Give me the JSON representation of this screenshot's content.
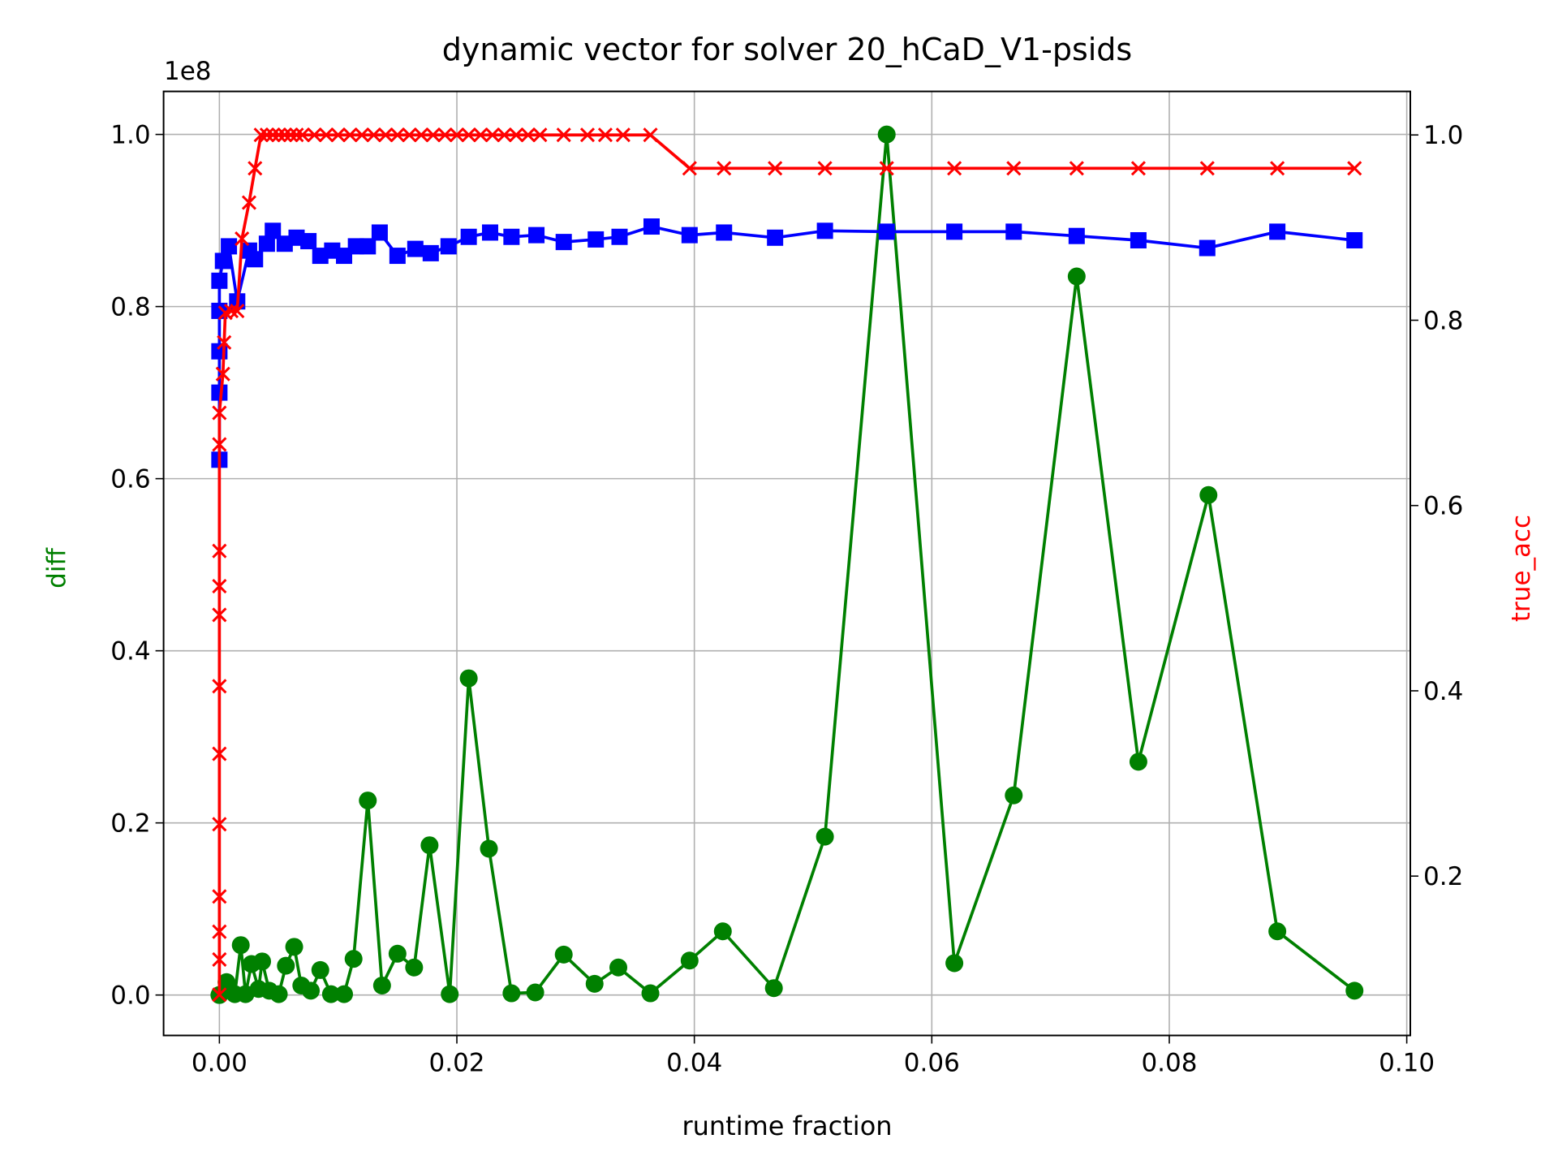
{
  "chart_data": {
    "type": "line",
    "title": "dynamic vector for solver 20_hCaD_V1-psids",
    "xlabel": "runtime fraction",
    "ylabel": "diff",
    "y2label": "true_acc",
    "y_offset_label": "1e8",
    "xlim": [
      -0.0047,
      0.1003
    ],
    "ylim": [
      -0.047,
      1.05
    ],
    "y2lim": [
      0.028,
      1.047
    ],
    "xticks": [
      {
        "value": 0,
        "label": "0.00"
      },
      {
        "value": 0.02,
        "label": "0.02"
      },
      {
        "value": 0.04,
        "label": "0.04"
      },
      {
        "value": 0.06,
        "label": "0.06"
      },
      {
        "value": 0.08,
        "label": "0.08"
      },
      {
        "value": 0.1,
        "label": "0.10"
      }
    ],
    "yticks": [
      {
        "value": 0,
        "label": "0.0"
      },
      0.2,
      0.4,
      0.6,
      0.8,
      {
        "value": 1,
        "label": "1.0"
      }
    ],
    "y2ticks": [
      0.2,
      0.4,
      0.6,
      0.8,
      {
        "value": 1,
        "label": "1.0"
      }
    ],
    "grid": true,
    "ylabel_color": "#008000",
    "y2label_color": "#ff0000",
    "series": [
      {
        "color": "#008000",
        "marker": "circle",
        "x": [
          0,
          0.0006,
          0.0013,
          0.0018,
          0.0022,
          0.0027,
          0.0033,
          0.0036,
          0.0042,
          0.005,
          0.0056,
          0.0063,
          0.0069,
          0.0077,
          0.0085,
          0.0094,
          0.0105,
          0.0113,
          0.0125,
          0.0137,
          0.015,
          0.0164,
          0.0177,
          0.0194,
          0.021,
          0.0227,
          0.0246,
          0.0266,
          0.029,
          0.0316,
          0.0336,
          0.0363,
          0.0396,
          0.0424,
          0.0467,
          0.051,
          0.0562,
          0.0619,
          0.0669,
          0.0722,
          0.0774,
          0.0833,
          0.0891,
          0.0956
        ],
        "values": [
          0,
          0.015,
          0.001,
          0.058,
          0.001,
          0.036,
          0.007,
          0.039,
          0.005,
          0.001,
          0.034,
          0.056,
          0.011,
          0.005,
          0.029,
          0.001,
          0.001,
          0.042,
          0.226,
          0.011,
          0.048,
          0.032,
          0.174,
          0.001,
          0.368,
          0.17,
          0.002,
          0.003,
          0.047,
          0.013,
          0.032,
          0.002,
          0.04,
          0.074,
          0.008,
          0.184,
          1.0,
          0.037,
          0.232,
          0.835,
          0.271,
          0.581,
          0.074,
          0.005
        ]
      },
      {
        "color": "#0000ff",
        "marker": "square",
        "x": [
          0,
          0,
          0,
          0,
          0,
          0.0003,
          0.0008,
          0.0015,
          0.0025,
          0.003,
          0.004,
          0.0045,
          0.0055,
          0.0065,
          0.0075,
          0.0085,
          0.0095,
          0.0105,
          0.0115,
          0.0125,
          0.0135,
          0.015,
          0.0165,
          0.0178,
          0.0193,
          0.021,
          0.0228,
          0.0246,
          0.0267,
          0.029,
          0.0317,
          0.0337,
          0.0364,
          0.0396,
          0.0425,
          0.0468,
          0.051,
          0.0562,
          0.0619,
          0.0669,
          0.0722,
          0.0774,
          0.0832,
          0.0891,
          0.0956
        ],
        "values": [
          0.622,
          0.7,
          0.748,
          0.795,
          0.83,
          0.853,
          0.87,
          0.806,
          0.865,
          0.855,
          0.873,
          0.888,
          0.873,
          0.88,
          0.876,
          0.859,
          0.865,
          0.859,
          0.87,
          0.87,
          0.886,
          0.859,
          0.867,
          0.862,
          0.87,
          0.881,
          0.886,
          0.881,
          0.883,
          0.875,
          0.878,
          0.881,
          0.893,
          0.883,
          0.886,
          0.88,
          0.888,
          0.887,
          0.887,
          0.887,
          0.882,
          0.877,
          0.868,
          0.887,
          0.877
        ]
      },
      {
        "color": "#ff0000",
        "marker": "x",
        "axis": "y2",
        "x": [
          0,
          0,
          0,
          0,
          0,
          0,
          0,
          0,
          0,
          0,
          0,
          0,
          0.0003,
          0.0004,
          0.0005,
          0.001,
          0.0015,
          0.0019,
          0.0025,
          0.003,
          0.0035,
          0.004,
          0.0045,
          0.005,
          0.0055,
          0.006,
          0.0065,
          0.007,
          0.008,
          0.009,
          0.01,
          0.011,
          0.012,
          0.013,
          0.014,
          0.015,
          0.016,
          0.017,
          0.018,
          0.019,
          0.02,
          0.021,
          0.022,
          0.023,
          0.024,
          0.025,
          0.026,
          0.027,
          0.029,
          0.031,
          0.0325,
          0.034,
          0.0363,
          0.0396,
          0.0425,
          0.0468,
          0.051,
          0.0562,
          0.0619,
          0.0669,
          0.0722,
          0.0774,
          0.0832,
          0.0891,
          0.0956
        ],
        "values": [
          0.072,
          0.11,
          0.14,
          0.178,
          0.256,
          0.332,
          0.405,
          0.482,
          0.513,
          0.551,
          0.666,
          0.7,
          0.742,
          0.776,
          0.808,
          0.81,
          0.81,
          0.888,
          0.927,
          0.964,
          1.0,
          1.0,
          1.0,
          1.0,
          1.0,
          1.0,
          1.0,
          1.0,
          1.0,
          1.0,
          1.0,
          1.0,
          1.0,
          1.0,
          1.0,
          1.0,
          1.0,
          1.0,
          1.0,
          1.0,
          1.0,
          1.0,
          1.0,
          1.0,
          1.0,
          1.0,
          1.0,
          1.0,
          1.0,
          1.0,
          1.0,
          1.0,
          1.0,
          0.964,
          0.964,
          0.964,
          0.964,
          0.964,
          0.964,
          0.964,
          0.964,
          0.964,
          0.964,
          0.964,
          0.964
        ]
      }
    ]
  }
}
